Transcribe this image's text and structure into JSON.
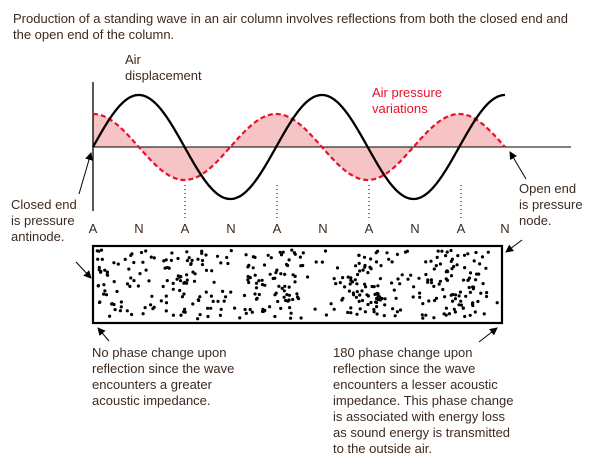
{
  "intro_text": "Production of a standing wave in an air column involves reflections from both the closed end and the open end of the column.",
  "labels": {
    "air_displacement": "Air\ndisplacement",
    "air_pressure": "Air pressure\nvariations",
    "closed_end": "Closed end\nis pressure\nantinode.",
    "open_end": "Open end\nis pressure\nnode."
  },
  "node_labels": [
    "A",
    "N",
    "A",
    "N",
    "A",
    "N",
    "A",
    "N",
    "A",
    "N"
  ],
  "notes": {
    "closed_end": "No phase change upon\nreflection since the wave\nencounters a greater\nacoustic impedance.",
    "open_end": "180 phase change upon\nreflection since the wave\nencounters a lesser acoustic\nimpedance. This phase change\nis associated with energy loss\nas sound energy is transmitted\nto the outside air."
  },
  "colors": {
    "text": "#3d2a1e",
    "pressure": "#e8102a",
    "pressure_fill": "#f6c4c4",
    "displacement": "#000000"
  }
}
